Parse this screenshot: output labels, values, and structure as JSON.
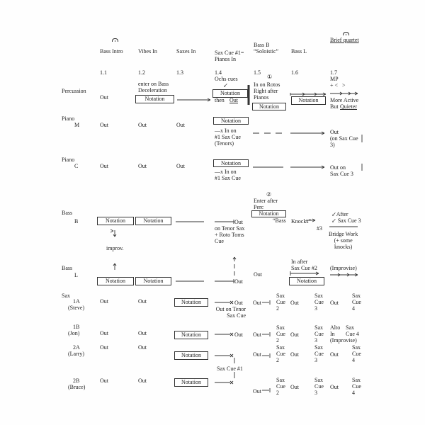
{
  "columns": [
    {
      "title": "Bass Intro",
      "number": "1.1"
    },
    {
      "title": "Vibes In",
      "number": "1.2"
    },
    {
      "title": "Saxes In",
      "number": "1.3"
    },
    {
      "title": "Sax Cue #1=\nPianos In",
      "number": "1.4"
    },
    {
      "title": "Bass B\n“Soloistic”",
      "number": "1.5"
    },
    {
      "title": "Bass L",
      "number": "1.6"
    },
    {
      "title": "Brief quartet",
      "number": "1.7"
    }
  ],
  "icons": [
    "fermata-icon",
    "arrow-icon",
    "x-mark-icon",
    "barline-icon"
  ],
  "rows": {
    "percussion": {
      "label": "Percussion",
      "c1": "Out",
      "c2_note": "enter on Bass\nDeceleration",
      "c2_box": "Notation",
      "c4_note": "Ochs cues\n      ↙",
      "c4_box": "Notation",
      "c4_after": "then",
      "c4_after_u": "Out",
      "c5_marker": "①",
      "c5_note": "In on Rotos\nRight after\nPianos",
      "c5_box": "Notation",
      "c6_box": "Notation",
      "c7_dyn": "MP\n+ <   >",
      "c7_note": "More Active",
      "c7_note2": "But",
      "c7_note2_u": "Quieter"
    },
    "piano_m": {
      "label": "Piano",
      "sub": "M",
      "c1": "Out",
      "c2": "Out",
      "c3": "Out",
      "c4_box": "Notation",
      "c4_note": "—x In on\n#1 Sax Cue\n(Tenors)",
      "c7": "Out\n(on Sax Cue\n3)"
    },
    "piano_c": {
      "label": "Piano",
      "sub": "C",
      "c1": "Out",
      "c2": "Out",
      "c3": "Out",
      "c4_box": "Notation",
      "c4_note": "—x In on\n#1 Sax Cue",
      "c7": "Out on\nSax Cue 3"
    },
    "bass_b": {
      "label": "Bass",
      "sub": "B",
      "c1_box": "Notation",
      "c2_box": "Notation",
      "c1_below": "improv.",
      "c4": "Out",
      "c4_note": "on Tenor Sax\n+ Roto Toms\nCue",
      "c5_marker": "②",
      "c5_note": "Enter after\nPerc",
      "c5_box": "Notation",
      "c5_after": "“Bass",
      "c6": "Knocks”",
      "c6_sub": "#3",
      "c7_top": "↙After\n↙ Sax Cue 3",
      "c7_note": "Bridge Work\n(+ some\nknocks)"
    },
    "bass_l": {
      "label": "Bass",
      "sub": "L",
      "c1_box": "Notation",
      "c2_box": "Notation",
      "c4": "Out",
      "c5": "Out",
      "c6_note": "In after\nSax Cue #2",
      "c6_box": "Notation",
      "c7": "(Improvise)"
    },
    "sax": {
      "label": "Sax",
      "cue1_note": "Sax Cue #1",
      "players": [
        {
          "id": "1A",
          "name": "(Steve)",
          "c1": "Out",
          "c2": "Out",
          "box": "Notation",
          "c4": "Out",
          "c4_note": "Out on Tenor\nSax Cue",
          "c5": "Out",
          "cue2": "Sax\nCue\n2",
          "c6": "Out",
          "cue3": "Sax\nCue\n3",
          "c7": "Out",
          "cue4": "Sax\nCue\n4"
        },
        {
          "id": "1B",
          "name": "(Jon)",
          "c1": "Out",
          "c2": "Out",
          "box": "Notation",
          "c4": "Out",
          "c5": "Out",
          "cue2": "Sax\nCue\n2",
          "c6": "Out",
          "cue3": "Sax\nCue\n3",
          "c7": "Alto\nIn\n(Improvise)",
          "cue4": "Sax\nCue 4"
        },
        {
          "id": "2A",
          "name": "(Larry)",
          "c1": "Out",
          "c2": "Out",
          "box": "Notation",
          "c5": "Out",
          "cue2": "Sax\nCue\n2",
          "c6": "Out",
          "cue3": "Sax\nCue\n3",
          "c7": "Out",
          "cue4": "Sax\nCue\n4"
        },
        {
          "id": "2B",
          "name": "(Bruce)",
          "c1": "Out",
          "c2": "Out",
          "box": "Notation",
          "c5": "Out",
          "cue2": "Sax\nCue\n2",
          "c6": "Out",
          "cue3": "Sax\nCue\n3",
          "c7": "Out",
          "cue4": "Sax\nCue\n4"
        }
      ]
    }
  }
}
